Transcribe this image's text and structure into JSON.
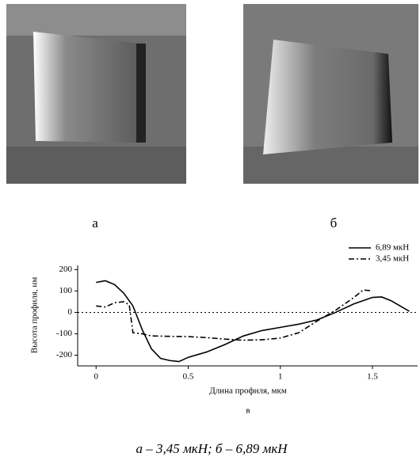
{
  "figure": {
    "panel_labels": [
      "а",
      "б"
    ],
    "subfigure_label": "в",
    "caption": "а – 3,45 мкН; б – 6,89 мкН"
  },
  "chart_data": {
    "type": "line",
    "xlabel": "Длина профиля, мкм",
    "ylabel": "Высота профиля, нм",
    "xlim": [
      -0.1,
      1.745
    ],
    "ylim": [
      -250,
      220
    ],
    "xticks": [
      0,
      0.5,
      1,
      1.5
    ],
    "yticks": [
      -200,
      -100,
      0,
      100,
      200
    ],
    "zero_line": true,
    "legend": "upper right",
    "series": [
      {
        "name": "6,89 мкН",
        "color": "#000000",
        "dash": "solid",
        "x": [
          0,
          0.05,
          0.1,
          0.15,
          0.2,
          0.25,
          0.3,
          0.35,
          0.4,
          0.45,
          0.5,
          0.6,
          0.7,
          0.8,
          0.9,
          1.0,
          1.1,
          1.2,
          1.3,
          1.4,
          1.5,
          1.55,
          1.6,
          1.7
        ],
        "values": [
          140,
          148,
          130,
          90,
          30,
          -80,
          -170,
          -215,
          -225,
          -230,
          -210,
          -185,
          -150,
          -110,
          -85,
          -70,
          -55,
          -35,
          0,
          40,
          70,
          72,
          55,
          5
        ]
      },
      {
        "name": "3,45 мкН",
        "color": "#000000",
        "dash": "dashdot",
        "x": [
          0,
          0.05,
          0.1,
          0.15,
          0.18,
          0.2,
          0.25,
          0.3,
          0.4,
          0.5,
          0.6,
          0.7,
          0.8,
          0.9,
          1.0,
          1.1,
          1.2,
          1.3,
          1.4,
          1.45,
          1.5
        ],
        "values": [
          30,
          25,
          45,
          50,
          35,
          -95,
          -100,
          -110,
          -112,
          -113,
          -118,
          -125,
          -130,
          -128,
          -120,
          -95,
          -40,
          10,
          70,
          105,
          100
        ]
      }
    ]
  }
}
